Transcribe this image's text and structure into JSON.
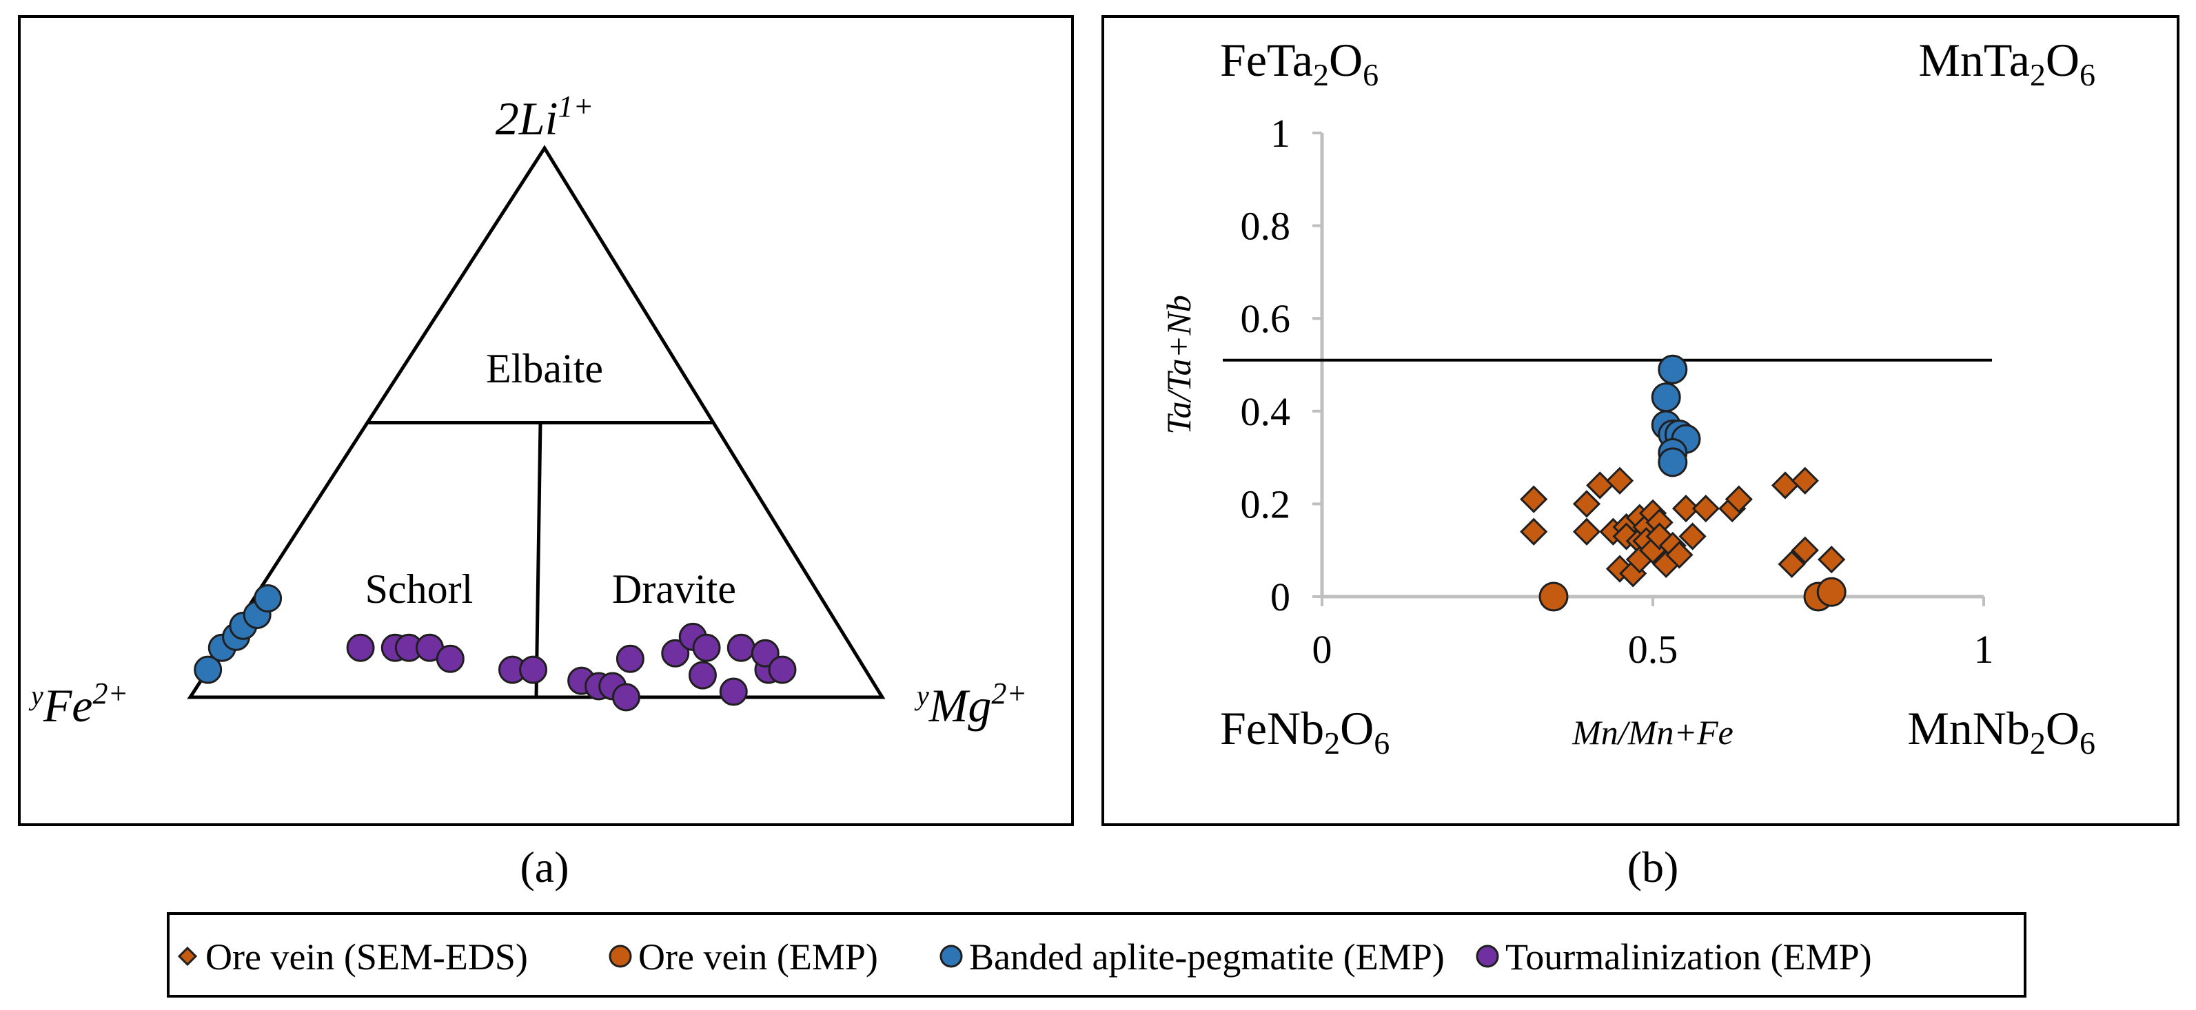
{
  "colors": {
    "ore_sem": "#c55a11",
    "ore_emp": "#c55a11",
    "banded": "#2e75b6",
    "tourm": "#7030a0",
    "marker_outline": "#1f1f1f",
    "axis": "#bfbfbf",
    "frame": "#000000"
  },
  "panel_a": {
    "caption": "(a)",
    "apex_top": {
      "base": "2Li",
      "sup": "1+"
    },
    "apex_left": {
      "pre": "y",
      "base": "Fe",
      "sup": "2+"
    },
    "apex_right": {
      "pre": "y",
      "base": "Mg",
      "sup": "2+"
    },
    "fields": [
      "Elbaite",
      "Schorl",
      "Dravite"
    ]
  },
  "panel_b": {
    "caption": "(b)",
    "corner_tl": {
      "base": "FeTa",
      "sub1": "2",
      "mid": "O",
      "sub2": "6"
    },
    "corner_tr": {
      "base": "MnTa",
      "sub1": "2",
      "mid": "O",
      "sub2": "6"
    },
    "corner_bl": {
      "base": "FeNb",
      "sub1": "2",
      "mid": "O",
      "sub2": "6"
    },
    "corner_br": {
      "base": "MnNb",
      "sub1": "2",
      "mid": "O",
      "sub2": "6"
    }
  },
  "legend": {
    "items": [
      {
        "label": "Ore vein (SEM-EDS)",
        "marker": "diamond",
        "color_key": "ore_sem"
      },
      {
        "label": "Ore vein (EMP)",
        "marker": "circle",
        "color_key": "ore_emp"
      },
      {
        "label": "Banded aplite-pegmatite (EMP)",
        "marker": "circle",
        "color_key": "banded"
      },
      {
        "label": "Tourmalinization (EMP)",
        "marker": "circle",
        "color_key": "tourm"
      }
    ]
  },
  "chart_data": [
    {
      "type": "ternary",
      "panel": "a",
      "vertices": [
        "2Li1+",
        "yFe2+",
        "yMg2+"
      ],
      "field_boundaries": [
        {
          "name": "Elbaite lower boundary",
          "li_fraction": 0.5
        },
        {
          "name": "Schorl-Dravite divider",
          "fe_mg_split": 0.5
        }
      ],
      "series": [
        {
          "name": "Banded aplite-pegmatite (EMP)",
          "color_key": "banded",
          "points": [
            {
              "fe": 0.95,
              "mg": 0.0,
              "li": 0.05
            },
            {
              "fe": 0.91,
              "mg": 0.0,
              "li": 0.09
            },
            {
              "fe": 0.88,
              "mg": 0.01,
              "li": 0.11
            },
            {
              "fe": 0.86,
              "mg": 0.01,
              "li": 0.13
            },
            {
              "fe": 0.83,
              "mg": 0.02,
              "li": 0.15
            },
            {
              "fe": 0.8,
              "mg": 0.02,
              "li": 0.18
            }
          ]
        },
        {
          "name": "Tourmalinization (EMP)",
          "color_key": "tourm",
          "points": [
            {
              "fe": 0.71,
              "mg": 0.2,
              "li": 0.09
            },
            {
              "fe": 0.66,
              "mg": 0.25,
              "li": 0.09
            },
            {
              "fe": 0.64,
              "mg": 0.27,
              "li": 0.09
            },
            {
              "fe": 0.61,
              "mg": 0.3,
              "li": 0.09
            },
            {
              "fe": 0.59,
              "mg": 0.34,
              "li": 0.07
            },
            {
              "fe": 0.51,
              "mg": 0.44,
              "li": 0.05
            },
            {
              "fe": 0.48,
              "mg": 0.47,
              "li": 0.05
            },
            {
              "fe": 0.42,
              "mg": 0.55,
              "li": 0.03
            },
            {
              "fe": 0.4,
              "mg": 0.58,
              "li": 0.02
            },
            {
              "fe": 0.38,
              "mg": 0.6,
              "li": 0.02
            },
            {
              "fe": 0.37,
              "mg": 0.63,
              "li": 0.0
            },
            {
              "fe": 0.33,
              "mg": 0.6,
              "li": 0.07
            },
            {
              "fe": 0.26,
              "mg": 0.66,
              "li": 0.08
            },
            {
              "fe": 0.24,
              "mg": 0.72,
              "li": 0.04
            },
            {
              "fe": 0.22,
              "mg": 0.67,
              "li": 0.11
            },
            {
              "fe": 0.21,
              "mg": 0.7,
              "li": 0.09
            },
            {
              "fe": 0.21,
              "mg": 0.78,
              "li": 0.01
            },
            {
              "fe": 0.16,
              "mg": 0.75,
              "li": 0.09
            },
            {
              "fe": 0.14,
              "mg": 0.81,
              "li": 0.05
            },
            {
              "fe": 0.13,
              "mg": 0.79,
              "li": 0.08
            },
            {
              "fe": 0.12,
              "mg": 0.83,
              "li": 0.05
            }
          ]
        }
      ]
    },
    {
      "type": "scatter",
      "panel": "b",
      "xlabel": "Mn/Mn+Fe",
      "ylabel": "Ta/Ta+Nb",
      "xlim": [
        0,
        1
      ],
      "ylim": [
        0,
        1
      ],
      "xticks": [
        "0",
        "0.5",
        "1"
      ],
      "yticks": [
        "0",
        "0.2",
        "0.4",
        "0.6",
        "0.8",
        "1"
      ],
      "reference_line": {
        "y": 0.51
      },
      "series": [
        {
          "name": "Ore vein (SEM-EDS)",
          "marker": "diamond",
          "color_key": "ore_sem",
          "points": [
            [
              0.32,
              0.21
            ],
            [
              0.32,
              0.14
            ],
            [
              0.4,
              0.2
            ],
            [
              0.4,
              0.14
            ],
            [
              0.42,
              0.24
            ],
            [
              0.44,
              0.14
            ],
            [
              0.45,
              0.25
            ],
            [
              0.45,
              0.06
            ],
            [
              0.46,
              0.15
            ],
            [
              0.46,
              0.13
            ],
            [
              0.47,
              0.05
            ],
            [
              0.48,
              0.17
            ],
            [
              0.48,
              0.12
            ],
            [
              0.48,
              0.08
            ],
            [
              0.49,
              0.15
            ],
            [
              0.49,
              0.12
            ],
            [
              0.5,
              0.18
            ],
            [
              0.5,
              0.1
            ],
            [
              0.51,
              0.16
            ],
            [
              0.51,
              0.13
            ],
            [
              0.52,
              0.07
            ],
            [
              0.53,
              0.11
            ],
            [
              0.54,
              0.09
            ],
            [
              0.55,
              0.19
            ],
            [
              0.56,
              0.13
            ],
            [
              0.58,
              0.19
            ],
            [
              0.62,
              0.19
            ],
            [
              0.63,
              0.21
            ],
            [
              0.7,
              0.24
            ],
            [
              0.73,
              0.25
            ],
            [
              0.73,
              0.1
            ],
            [
              0.71,
              0.07
            ],
            [
              0.77,
              0.08
            ]
          ]
        },
        {
          "name": "Ore vein (EMP)",
          "marker": "circle",
          "color_key": "ore_emp",
          "points": [
            [
              0.35,
              0.0
            ],
            [
              0.75,
              0.0
            ],
            [
              0.77,
              0.01
            ]
          ]
        },
        {
          "name": "Banded aplite-pegmatite (EMP)",
          "marker": "circle",
          "color_key": "banded",
          "points": [
            [
              0.53,
              0.49
            ],
            [
              0.52,
              0.43
            ],
            [
              0.52,
              0.37
            ],
            [
              0.53,
              0.35
            ],
            [
              0.54,
              0.35
            ],
            [
              0.55,
              0.34
            ],
            [
              0.53,
              0.31
            ],
            [
              0.53,
              0.29
            ]
          ]
        }
      ]
    }
  ]
}
